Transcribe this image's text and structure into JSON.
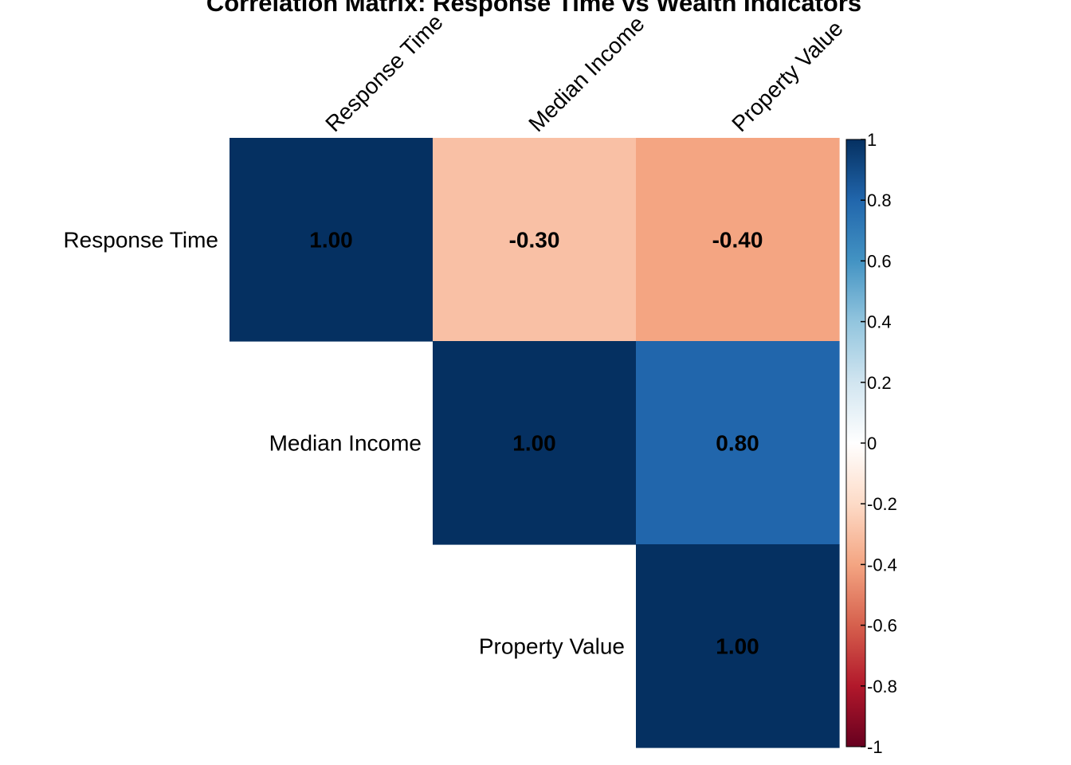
{
  "chart_data": {
    "type": "heatmap",
    "title": "Correlation Matrix: Response Time vs Wealth Indicators",
    "variables": [
      "Response Time",
      "Median Income",
      "Property Value"
    ],
    "matrix": [
      [
        1.0,
        -0.3,
        -0.4
      ],
      [
        -0.3,
        1.0,
        0.8
      ],
      [
        -0.4,
        0.8,
        1.0
      ]
    ],
    "cell_labels": [
      [
        "1.00",
        "-0.30",
        "-0.40"
      ],
      [
        null,
        "1.00",
        "0.80"
      ],
      [
        null,
        null,
        "1.00"
      ]
    ],
    "display": "upper-triangle",
    "color_scale": {
      "min": -1,
      "max": 1,
      "ticks": [
        1,
        0.8,
        0.6,
        0.4,
        0.2,
        0,
        -0.2,
        -0.4,
        -0.6,
        -0.8,
        -1
      ],
      "tick_labels": [
        "1",
        "0.8",
        "0.6",
        "0.4",
        "0.2",
        "0",
        "-0.2",
        "-0.4",
        "-0.6",
        "-0.8",
        "-1"
      ],
      "colors": [
        "#67001F",
        "#B2182B",
        "#D6604D",
        "#F4A582",
        "#FDDBC7",
        "#FFFFFF",
        "#D1E5F0",
        "#92C5DE",
        "#4393C3",
        "#2166AC",
        "#053061"
      ]
    },
    "legend_placement": "right",
    "grid": false
  }
}
